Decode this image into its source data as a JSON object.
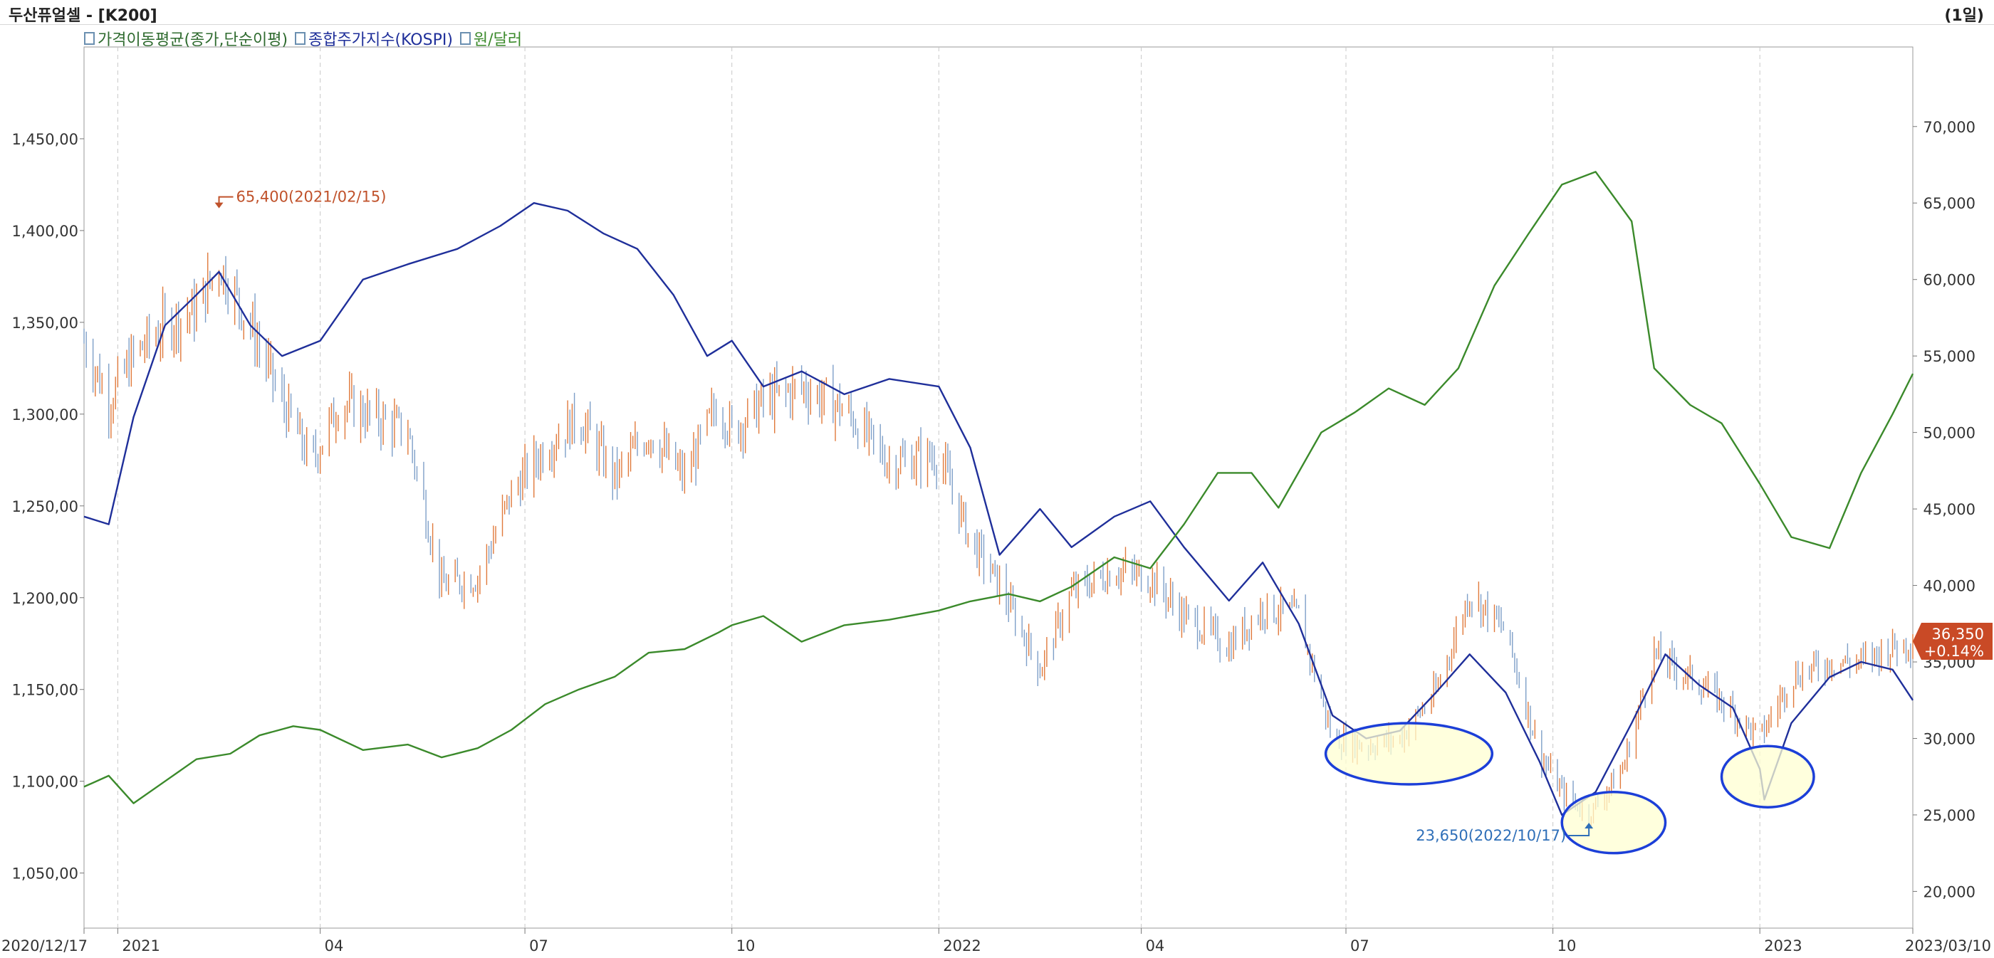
{
  "header": {
    "title": "두산퓨얼셀 - [K200]",
    "period": "(1일)"
  },
  "legend": [
    {
      "label": "가격이동평균(종가,단순이평)",
      "color": "#2f6b2f"
    },
    {
      "label": "종합주가지수(KOSPI)",
      "color": "#1f2f9a"
    },
    {
      "label": "원/달러",
      "color": "#3b8a2b"
    }
  ],
  "chart_data": {
    "type": "line",
    "x_range": [
      "2020-12-17",
      "2023-03-10"
    ],
    "x_ticks": [
      {
        "date": "2020-12-17",
        "label": "2020/12/17"
      },
      {
        "date": "2021-01-01",
        "label": "2021"
      },
      {
        "date": "2021-04-01",
        "label": "04"
      },
      {
        "date": "2021-07-01",
        "label": "07"
      },
      {
        "date": "2021-10-01",
        "label": "10"
      },
      {
        "date": "2022-01-01",
        "label": "2022"
      },
      {
        "date": "2022-04-01",
        "label": "04"
      },
      {
        "date": "2022-07-01",
        "label": "07"
      },
      {
        "date": "2022-10-01",
        "label": "10"
      },
      {
        "date": "2023-01-01",
        "label": "2023"
      },
      {
        "date": "2023-03-10",
        "label": "2023/03/10"
      }
    ],
    "left_axis": {
      "ylim": [
        1020,
        1500
      ],
      "ticks": [
        {
          "v": 1050,
          "label": "1,050,00"
        },
        {
          "v": 1100,
          "label": "1,100,00"
        },
        {
          "v": 1150,
          "label": "1,150,00"
        },
        {
          "v": 1200,
          "label": "1,200,00"
        },
        {
          "v": 1250,
          "label": "1,250,00"
        },
        {
          "v": 1300,
          "label": "1,300,00"
        },
        {
          "v": 1350,
          "label": "1,350,00"
        },
        {
          "v": 1400,
          "label": "1,400,00"
        },
        {
          "v": 1450,
          "label": "1,450,00"
        }
      ]
    },
    "right_axis": {
      "ylim": [
        17600,
        75200
      ],
      "ticks": [
        {
          "v": 20000,
          "label": "20,000"
        },
        {
          "v": 25000,
          "label": "25,000"
        },
        {
          "v": 30000,
          "label": "30,000"
        },
        {
          "v": 35000,
          "label": "35,000"
        },
        {
          "v": 40000,
          "label": "40,000"
        },
        {
          "v": 45000,
          "label": "45,000"
        },
        {
          "v": 50000,
          "label": "50,000"
        },
        {
          "v": 55000,
          "label": "55,000"
        },
        {
          "v": 60000,
          "label": "60,000"
        },
        {
          "v": 65000,
          "label": "65,000"
        },
        {
          "v": 70000,
          "label": "70,000"
        }
      ]
    },
    "series": [
      {
        "name": "종합주가지수(KOSPI)",
        "axis": "right",
        "color": "#1f2f9a",
        "points": [
          [
            "2020-12-17",
            44500
          ],
          [
            "2020-12-28",
            44000
          ],
          [
            "2021-01-08",
            51000
          ],
          [
            "2021-01-22",
            57000
          ],
          [
            "2021-02-05",
            59000
          ],
          [
            "2021-02-15",
            60500
          ],
          [
            "2021-03-01",
            57000
          ],
          [
            "2021-03-15",
            55000
          ],
          [
            "2021-04-01",
            56000
          ],
          [
            "2021-04-20",
            60000
          ],
          [
            "2021-05-10",
            61000
          ],
          [
            "2021-06-01",
            62000
          ],
          [
            "2021-06-20",
            63500
          ],
          [
            "2021-07-05",
            65000
          ],
          [
            "2021-07-20",
            64500
          ],
          [
            "2021-08-05",
            63000
          ],
          [
            "2021-08-20",
            62000
          ],
          [
            "2021-09-05",
            59000
          ],
          [
            "2021-09-20",
            55000
          ],
          [
            "2021-10-01",
            56000
          ],
          [
            "2021-10-15",
            53000
          ],
          [
            "2021-11-01",
            54000
          ],
          [
            "2021-11-20",
            52500
          ],
          [
            "2021-12-10",
            53500
          ],
          [
            "2022-01-01",
            53000
          ],
          [
            "2022-01-15",
            49000
          ],
          [
            "2022-01-28",
            42000
          ],
          [
            "2022-02-15",
            45000
          ],
          [
            "2022-03-01",
            42500
          ],
          [
            "2022-03-20",
            44500
          ],
          [
            "2022-04-05",
            45500
          ],
          [
            "2022-04-20",
            42500
          ],
          [
            "2022-05-10",
            39000
          ],
          [
            "2022-05-25",
            41500
          ],
          [
            "2022-06-10",
            37500
          ],
          [
            "2022-06-25",
            31500
          ],
          [
            "2022-07-10",
            30000
          ],
          [
            "2022-07-25",
            30500
          ],
          [
            "2022-08-10",
            33000
          ],
          [
            "2022-08-25",
            35500
          ],
          [
            "2022-09-10",
            33000
          ],
          [
            "2022-09-25",
            28500
          ],
          [
            "2022-10-05",
            25000
          ],
          [
            "2022-10-20",
            26500
          ],
          [
            "2022-11-05",
            31000
          ],
          [
            "2022-11-20",
            35500
          ],
          [
            "2022-12-05",
            33500
          ],
          [
            "2022-12-20",
            32000
          ],
          [
            "2023-01-01",
            28000
          ],
          [
            "2023-01-03",
            26000
          ],
          [
            "2023-01-15",
            31000
          ],
          [
            "2023-02-01",
            34000
          ],
          [
            "2023-02-15",
            35000
          ],
          [
            "2023-03-01",
            34500
          ],
          [
            "2023-03-10",
            32500
          ]
        ]
      },
      {
        "name": "원/달러",
        "axis": "left",
        "color": "#3b8a2b",
        "points": [
          [
            "2020-12-17",
            1097
          ],
          [
            "2020-12-28",
            1103
          ],
          [
            "2021-01-08",
            1088
          ],
          [
            "2021-01-22",
            1100
          ],
          [
            "2021-02-05",
            1112
          ],
          [
            "2021-02-20",
            1115
          ],
          [
            "2021-03-05",
            1125
          ],
          [
            "2021-03-20",
            1130
          ],
          [
            "2021-04-01",
            1128
          ],
          [
            "2021-04-20",
            1117
          ],
          [
            "2021-05-10",
            1120
          ],
          [
            "2021-05-25",
            1113
          ],
          [
            "2021-06-10",
            1118
          ],
          [
            "2021-06-25",
            1128
          ],
          [
            "2021-07-10",
            1142
          ],
          [
            "2021-07-25",
            1150
          ],
          [
            "2021-08-10",
            1157
          ],
          [
            "2021-08-25",
            1170
          ],
          [
            "2021-09-10",
            1172
          ],
          [
            "2021-09-25",
            1181
          ],
          [
            "2021-10-01",
            1185
          ],
          [
            "2021-10-15",
            1190
          ],
          [
            "2021-11-01",
            1176
          ],
          [
            "2021-11-20",
            1185
          ],
          [
            "2021-12-10",
            1188
          ],
          [
            "2022-01-01",
            1193
          ],
          [
            "2022-01-15",
            1198
          ],
          [
            "2022-02-01",
            1202
          ],
          [
            "2022-02-15",
            1198
          ],
          [
            "2022-03-01",
            1206
          ],
          [
            "2022-03-20",
            1222
          ],
          [
            "2022-04-05",
            1216
          ],
          [
            "2022-04-20",
            1240
          ],
          [
            "2022-05-05",
            1268
          ],
          [
            "2022-05-20",
            1268
          ],
          [
            "2022-06-01",
            1249
          ],
          [
            "2022-06-20",
            1290
          ],
          [
            "2022-07-05",
            1301
          ],
          [
            "2022-07-20",
            1314
          ],
          [
            "2022-08-05",
            1305
          ],
          [
            "2022-08-20",
            1325
          ],
          [
            "2022-09-05",
            1370
          ],
          [
            "2022-09-20",
            1398
          ],
          [
            "2022-10-05",
            1425
          ],
          [
            "2022-10-20",
            1432
          ],
          [
            "2022-11-05",
            1405
          ],
          [
            "2022-11-15",
            1325
          ],
          [
            "2022-12-01",
            1305
          ],
          [
            "2022-12-15",
            1295
          ],
          [
            "2023-01-01",
            1262
          ],
          [
            "2023-01-15",
            1233
          ],
          [
            "2023-02-01",
            1227
          ],
          [
            "2023-02-15",
            1268
          ],
          [
            "2023-03-01",
            1300
          ],
          [
            "2023-03-10",
            1322
          ]
        ]
      }
    ],
    "candles": {
      "axis": "right",
      "up_color": "#e07a3c",
      "down_color": "#7e9fc8",
      "path": [
        [
          "2020-12-17",
          56000
        ],
        [
          "2020-12-28",
          52000
        ],
        [
          "2021-01-08",
          55000
        ],
        [
          "2021-01-22",
          57000
        ],
        [
          "2021-02-05",
          58000
        ],
        [
          "2021-02-15",
          61000
        ],
        [
          "2021-03-01",
          57000
        ],
        [
          "2021-03-15",
          52000
        ],
        [
          "2021-03-28",
          48000
        ],
        [
          "2021-04-10",
          52000
        ],
        [
          "2021-04-25",
          51000
        ],
        [
          "2021-05-10",
          50000
        ],
        [
          "2021-05-25",
          40000
        ],
        [
          "2021-06-10",
          40500
        ],
        [
          "2021-06-25",
          46000
        ],
        [
          "2021-07-10",
          49000
        ],
        [
          "2021-07-25",
          51000
        ],
        [
          "2021-08-10",
          47000
        ],
        [
          "2021-08-25",
          50000
        ],
        [
          "2021-09-10",
          47000
        ],
        [
          "2021-09-25",
          52000
        ],
        [
          "2021-10-01",
          50000
        ],
        [
          "2021-10-15",
          52000
        ],
        [
          "2021-11-01",
          53000
        ],
        [
          "2021-11-20",
          51500
        ],
        [
          "2021-12-10",
          48000
        ],
        [
          "2022-01-01",
          48500
        ],
        [
          "2022-01-15",
          43000
        ],
        [
          "2022-01-28",
          40000
        ],
        [
          "2022-02-15",
          34500
        ],
        [
          "2022-03-01",
          39500
        ],
        [
          "2022-03-20",
          41000
        ],
        [
          "2022-04-05",
          40500
        ],
        [
          "2022-04-20",
          38000
        ],
        [
          "2022-05-10",
          36000
        ],
        [
          "2022-05-25",
          38500
        ],
        [
          "2022-06-10",
          38000
        ],
        [
          "2022-06-25",
          30000
        ],
        [
          "2022-07-10",
          29500
        ],
        [
          "2022-07-25",
          30000
        ],
        [
          "2022-08-10",
          33000
        ],
        [
          "2022-08-25",
          39500
        ],
        [
          "2022-09-10",
          37000
        ],
        [
          "2022-09-25",
          29000
        ],
        [
          "2022-10-05",
          26500
        ],
        [
          "2022-10-17",
          25000
        ],
        [
          "2022-11-01",
          28000
        ],
        [
          "2022-11-15",
          35500
        ],
        [
          "2022-12-01",
          34000
        ],
        [
          "2022-12-15",
          32500
        ],
        [
          "2023-01-01",
          30000
        ],
        [
          "2023-01-15",
          34000
        ],
        [
          "2023-02-01",
          35000
        ],
        [
          "2023-02-15",
          35000
        ],
        [
          "2023-03-01",
          36000
        ],
        [
          "2023-03-10",
          36350
        ]
      ]
    },
    "annotations": {
      "high": {
        "date": "2021-02-15",
        "value": 65400,
        "label": "65,400(2021/02/15)",
        "color": "#c0522b"
      },
      "low": {
        "date": "2022-10-17",
        "value": 23650,
        "label": "23,650(2022/10/17)",
        "color": "#2f6fb8"
      },
      "last_price": {
        "value": 36350,
        "label": "36,350",
        "change": "+0.14%",
        "bg": "#c94a26"
      }
    },
    "highlight_ellipses": [
      {
        "from": "2022-06-22",
        "to": "2022-09-04",
        "y_from": 27000,
        "y_to": 31000
      },
      {
        "from": "2022-10-05",
        "to": "2022-11-20",
        "y_from": 22500,
        "y_to": 26500
      },
      {
        "from": "2022-12-15",
        "to": "2023-01-25",
        "y_from": 25500,
        "y_to": 29500
      }
    ]
  }
}
